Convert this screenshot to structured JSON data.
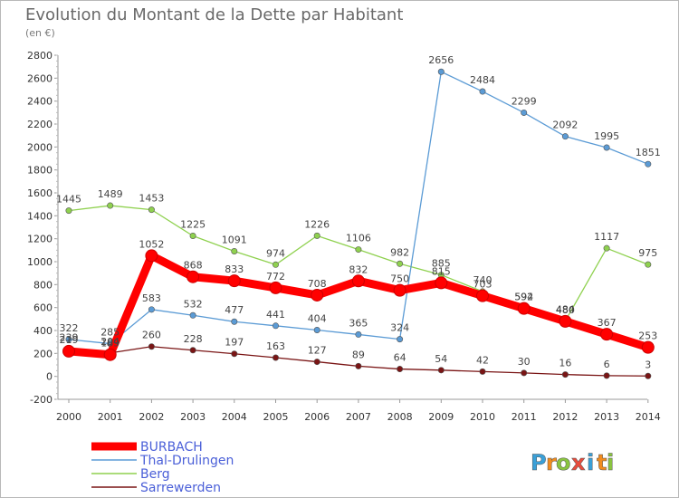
{
  "chart_data": {
    "type": "line",
    "title": "Evolution du Montant de la Dette par Habitant",
    "subtitle": "(en €)",
    "xlabel": "",
    "ylabel": "",
    "x": [
      "2000",
      "2001",
      "2002",
      "2003",
      "2004",
      "2005",
      "2006",
      "2007",
      "2008",
      "2009",
      "2010",
      "2011",
      "2012",
      "2013",
      "2014"
    ],
    "yticks": [
      "-200",
      "0",
      "200",
      "400",
      "600",
      "800",
      "1000",
      "1200",
      "1400",
      "1600",
      "1800",
      "2000",
      "2200",
      "2400",
      "2600",
      "2800"
    ],
    "ylim": [
      -200,
      2800
    ],
    "grid": false,
    "legend_position": "bottom-left",
    "series": [
      {
        "name": "BURBACH",
        "color": "#ff0000",
        "width": "thick",
        "values": [
          219,
          189,
          1052,
          868,
          833,
          772,
          708,
          832,
          750,
          815,
          703,
          592,
          480,
          367,
          253
        ],
        "labels": [
          "219",
          "189",
          "1052",
          "868",
          "833",
          "772",
          "708",
          "832",
          "750",
          "815",
          "703",
          "592",
          "480",
          "367",
          "253"
        ]
      },
      {
        "name": "Thal-Drulingen",
        "color": "#5b9bd5",
        "width": "thin",
        "values": [
          322,
          285,
          583,
          532,
          477,
          441,
          404,
          365,
          324,
          2656,
          2484,
          2299,
          2092,
          1995,
          1851
        ],
        "labels": [
          "322",
          "285",
          "583",
          "532",
          "477",
          "441",
          "404",
          "365",
          "324",
          "2656",
          "2484",
          "2299",
          "2092",
          "1995",
          "1851"
        ]
      },
      {
        "name": "Berg",
        "color": "#8fd14f",
        "width": "thin",
        "values": [
          1445,
          1489,
          1453,
          1225,
          1091,
          974,
          1226,
          1106,
          982,
          885,
          740,
          594,
          484,
          1117,
          975
        ],
        "labels": [
          "1445",
          "1489",
          "1453",
          "1225",
          "1091",
          "974",
          "1226",
          "1106",
          "982",
          "885",
          "740",
          "594",
          "484",
          "1117",
          "975"
        ]
      },
      {
        "name": "Sarrewerden",
        "color": "#7a1515",
        "width": "thin",
        "values": [
          239,
          204,
          260,
          228,
          197,
          163,
          127,
          89,
          64,
          54,
          42,
          30,
          16,
          6,
          3
        ],
        "labels": [
          "239",
          "204",
          "260",
          "228",
          "197",
          "163",
          "127",
          "89",
          "64",
          "54",
          "42",
          "30",
          "16",
          "6",
          "3"
        ]
      }
    ]
  },
  "logo": {
    "letters": [
      "P",
      "r",
      "o",
      "x",
      "i",
      "t",
      "i"
    ],
    "colors": [
      "#3aa0d8",
      "#f28c1e",
      "#8ac440",
      "#e84c3d",
      "#3aa0d8",
      "#f28c1e",
      "#8ac440"
    ]
  }
}
